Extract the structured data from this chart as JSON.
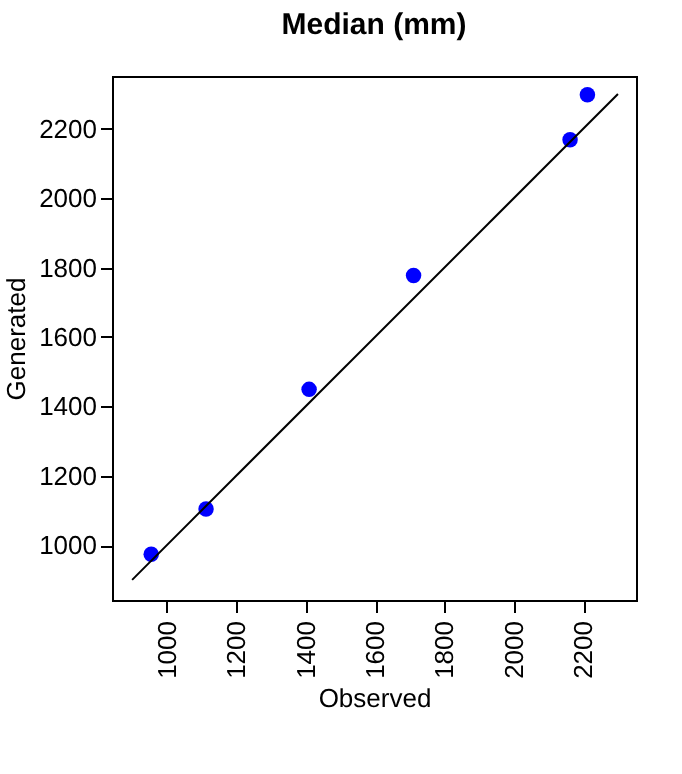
{
  "chart_data": {
    "type": "scatter",
    "title": "Median (mm)",
    "xlabel": "Observed",
    "ylabel": "Generated",
    "xlim": [
      842,
      2352
    ],
    "ylim": [
      842,
      2352
    ],
    "xticks": [
      1000,
      1200,
      1400,
      1600,
      1800,
      2000,
      2200
    ],
    "yticks": [
      1000,
      1200,
      1400,
      1600,
      1800,
      2000,
      2200
    ],
    "grid": false,
    "series": [
      {
        "marker": "circle",
        "color": "#0000ff",
        "x": [
          955,
          1113,
          1410,
          1711,
          2162,
          2212
        ],
        "values": [
          974,
          1104,
          1449,
          1777,
          2168,
          2298
        ]
      },
      {
        "type": "line",
        "marker": "none",
        "color": "#000000",
        "x": [
          900,
          2300
        ],
        "values": [
          900,
          2300
        ]
      }
    ]
  }
}
